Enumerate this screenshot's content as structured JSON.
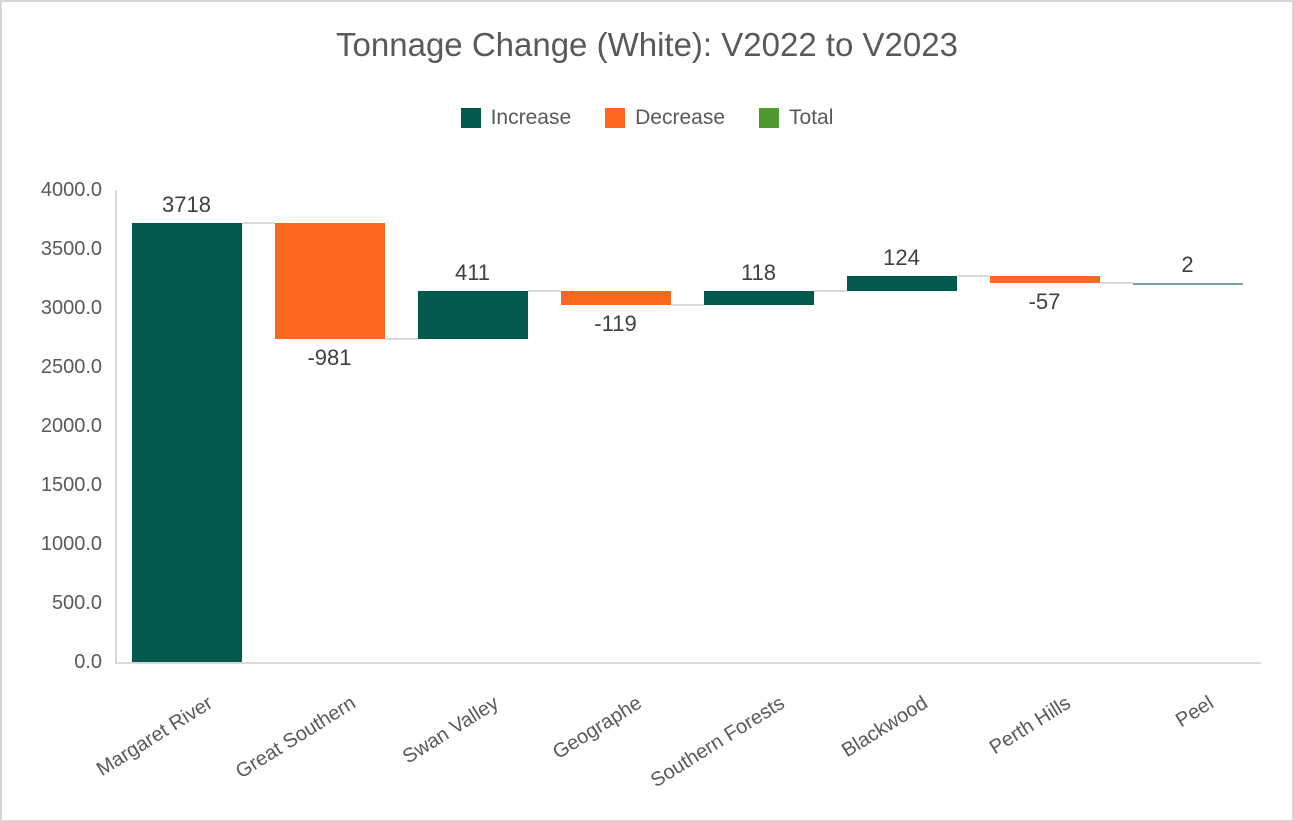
{
  "chart_data": {
    "type": "bar",
    "subtype": "waterfall",
    "title": "Tonnage Change (White): V2022 to V2023",
    "categories": [
      "Margaret River",
      "Great Southern",
      "Swan Valley",
      "Geographe",
      "Southern Forests",
      "Blackwood",
      "Perth Hills",
      "Peel"
    ],
    "values": [
      3718,
      -981,
      411,
      -119,
      118,
      124,
      -57,
      2
    ],
    "data_labels": [
      "3718",
      "-981",
      "411",
      "-119",
      "118",
      "124",
      "-57",
      "2"
    ],
    "bar_types": [
      "increase",
      "decrease",
      "increase",
      "decrease",
      "increase",
      "increase",
      "decrease",
      "increase"
    ],
    "running_totals": [
      3718,
      2737,
      3148,
      3029,
      3147,
      3271,
      3214,
      3216
    ],
    "legend": [
      {
        "label": "Increase",
        "color": "#02594E",
        "icon": "square-swatch"
      },
      {
        "label": "Decrease",
        "color": "#FC671F",
        "icon": "square-swatch"
      },
      {
        "label": "Total",
        "color": "#4E9A2E",
        "icon": "square-swatch"
      }
    ],
    "legend_position": "top",
    "grid": false,
    "xlabel": "",
    "ylabel": "",
    "ylim": [
      0,
      4000
    ],
    "y_axis": {
      "min": 0,
      "max": 4000,
      "step": 500,
      "tick_labels_top_to_bottom": [
        "4000.0",
        "3500.0",
        "3000.0",
        "2500.0",
        "2000.0",
        "1500.0",
        "1000.0",
        "500.0",
        "0.0"
      ]
    },
    "colors": {
      "increase": "#02594E",
      "decrease": "#FC671F",
      "total": "#4E9A2E",
      "axis_line": "#D9D9D9",
      "connector": "#D9D9D9",
      "title_text": "#595959",
      "axis_text": "#595959",
      "data_label_text": "#404040"
    }
  }
}
